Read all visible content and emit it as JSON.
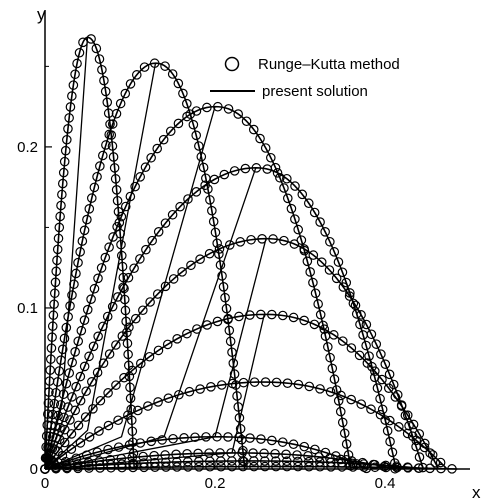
{
  "chart_data": {
    "type": "line",
    "xlabel": "x",
    "ylabel": "y",
    "xlim": [
      0,
      0.5
    ],
    "ylim": [
      0,
      0.285
    ],
    "x_ticks": [
      0,
      0.2,
      0.4
    ],
    "x_tick_labels": [
      "0",
      "0.2",
      "0.4"
    ],
    "y_ticks": [
      0,
      0.1,
      0.2
    ],
    "y_tick_labels": [
      "0",
      "0.1",
      "0.2"
    ],
    "legend": {
      "placement": "top-right",
      "entries": [
        {
          "label": "Runge–Kutta method",
          "marker": "open-circle"
        },
        {
          "label": "present solution",
          "marker": "line"
        }
      ]
    },
    "trajectories": [
      {
        "range": 0.485,
        "apex_x": 0.26,
        "apex_y": 0.0015
      },
      {
        "range": 0.45,
        "apex_x": 0.24,
        "apex_y": 0.005
      },
      {
        "range": 0.413,
        "apex_x": 0.22,
        "apex_y": 0.01
      },
      {
        "range": 0.38,
        "apex_x": 0.2,
        "apex_y": 0.02
      },
      {
        "range": 0.473,
        "apex_x": 0.255,
        "apex_y": 0.054
      },
      {
        "range": 0.463,
        "apex_x": 0.258,
        "apex_y": 0.096
      },
      {
        "range": 0.445,
        "apex_x": 0.26,
        "apex_y": 0.143
      },
      {
        "range": 0.413,
        "apex_x": 0.248,
        "apex_y": 0.187
      },
      {
        "range": 0.36,
        "apex_x": 0.2,
        "apex_y": 0.225
      },
      {
        "range": 0.235,
        "apex_x": 0.13,
        "apex_y": 0.252
      },
      {
        "range": 0.105,
        "apex_x": 0.05,
        "apex_y": 0.268
      }
    ],
    "envelope_lines": [
      [
        [
          0.0,
          0.0
        ],
        [
          0.02,
          0.04
        ],
        [
          0.05,
          0.268
        ]
      ],
      [
        [
          0.0,
          0.0
        ],
        [
          0.05,
          0.024
        ],
        [
          0.13,
          0.252
        ]
      ],
      [
        [
          0.0,
          0.0
        ],
        [
          0.09,
          0.02
        ],
        [
          0.2,
          0.225
        ]
      ],
      [
        [
          0.0,
          0.0
        ],
        [
          0.14,
          0.02
        ],
        [
          0.248,
          0.187
        ]
      ],
      [
        [
          0.0,
          0.0
        ],
        [
          0.2,
          0.02
        ],
        [
          0.26,
          0.143
        ]
      ],
      [
        [
          0.0,
          0.0
        ],
        [
          0.22,
          0.01
        ],
        [
          0.258,
          0.096
        ]
      ]
    ]
  }
}
